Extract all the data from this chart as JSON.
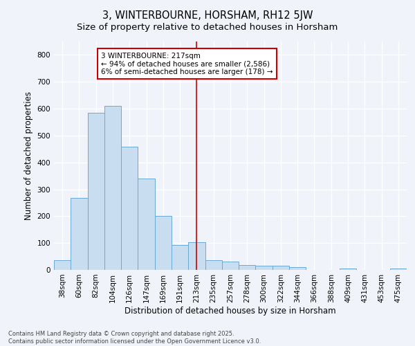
{
  "title": "3, WINTERBOURNE, HORSHAM, RH12 5JW",
  "subtitle": "Size of property relative to detached houses in Horsham",
  "xlabel": "Distribution of detached houses by size in Horsham",
  "ylabel": "Number of detached properties",
  "categories": [
    "38sqm",
    "60sqm",
    "82sqm",
    "104sqm",
    "126sqm",
    "147sqm",
    "169sqm",
    "191sqm",
    "213sqm",
    "235sqm",
    "257sqm",
    "278sqm",
    "300sqm",
    "322sqm",
    "344sqm",
    "366sqm",
    "388sqm",
    "409sqm",
    "431sqm",
    "453sqm",
    "475sqm"
  ],
  "values": [
    35,
    268,
    585,
    610,
    458,
    340,
    202,
    93,
    103,
    35,
    32,
    17,
    16,
    15,
    10,
    0,
    0,
    5,
    0,
    0,
    6
  ],
  "bar_color": "#c9ddf0",
  "bar_edge_color": "#6aaad4",
  "background_color": "#f0f4fa",
  "grid_color": "#ffffff",
  "vertical_line_x": 8,
  "vertical_line_color": "#cc0000",
  "annotation_text": "3 WINTERBOURNE: 217sqm\n← 94% of detached houses are smaller (2,586)\n6% of semi-detached houses are larger (178) →",
  "annotation_box_facecolor": "#ffffff",
  "annotation_box_edgecolor": "#cc0000",
  "footnote": "Contains HM Land Registry data © Crown copyright and database right 2025.\nContains public sector information licensed under the Open Government Licence v3.0.",
  "ylim": [
    0,
    850
  ],
  "yticks": [
    0,
    100,
    200,
    300,
    400,
    500,
    600,
    700,
    800
  ],
  "title_fontsize": 10.5,
  "subtitle_fontsize": 9.5,
  "axis_label_fontsize": 8.5,
  "tick_fontsize": 7.5,
  "annotation_fontsize": 7.5,
  "footnote_fontsize": 6.0
}
